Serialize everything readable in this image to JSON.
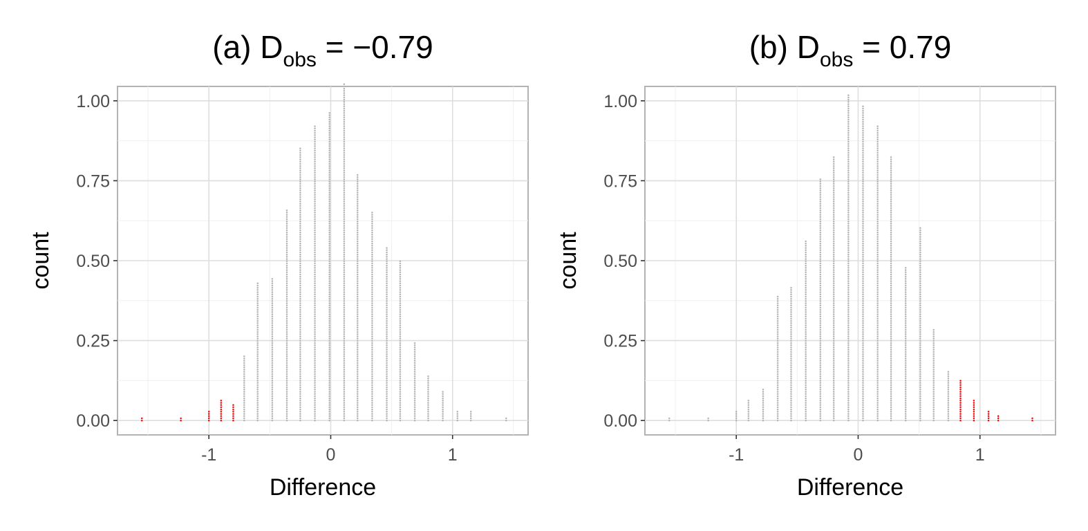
{
  "colors": {
    "extreme": "#ff0000",
    "regular": "#b3b3b3",
    "grid_major": "#dedede",
    "grid_minor": "#efefef",
    "panel_border": "#b3b3b3"
  },
  "chart_data": [
    {
      "type": "scatter",
      "style": "dotplot",
      "title_prefix": "(a) D",
      "title_subscript": "obs",
      "title_suffix": " = −0.79",
      "xlabel": "Difference",
      "ylabel": "count",
      "xlim": [
        -1.75,
        1.62
      ],
      "ylim": [
        -0.045,
        1.045
      ],
      "x_ticks": [
        -1,
        0,
        1
      ],
      "x_tick_labels": [
        "-1",
        "0",
        "1"
      ],
      "y_ticks": [
        0,
        0.25,
        0.5,
        0.75,
        1
      ],
      "y_tick_labels": [
        "0.00",
        "0.25",
        "0.50",
        "0.75",
        "1.00"
      ],
      "grid": true,
      "series": [
        {
          "color_key": "extreme",
          "x": [
            -1.55,
            -1.23,
            -1.0,
            -0.9,
            -0.8
          ],
          "y": [
            0.005,
            0.005,
            0.03,
            0.065,
            0.05
          ]
        },
        {
          "color_key": "regular",
          "x": [
            -0.71,
            -0.6,
            -0.48,
            -0.36,
            -0.25,
            -0.13,
            -0.01,
            0.11,
            0.22,
            0.34,
            0.46,
            0.57,
            0.69,
            0.8,
            0.92,
            1.04,
            1.15,
            1.44
          ],
          "y": [
            0.2,
            0.43,
            0.44,
            0.66,
            0.85,
            0.92,
            0.96,
            1.05,
            0.77,
            0.65,
            0.54,
            0.5,
            0.24,
            0.135,
            0.09,
            0.025,
            0.025,
            0.005
          ]
        }
      ]
    },
    {
      "type": "scatter",
      "style": "dotplot",
      "title_prefix": "(b) D",
      "title_subscript": "obs",
      "title_suffix": " = 0.79",
      "xlabel": "Difference",
      "ylabel": "count",
      "xlim": [
        -1.75,
        1.62
      ],
      "ylim": [
        -0.045,
        1.045
      ],
      "x_ticks": [
        -1,
        0,
        1
      ],
      "x_tick_labels": [
        "-1",
        "0",
        "1"
      ],
      "y_ticks": [
        0,
        0.25,
        0.5,
        0.75,
        1
      ],
      "y_tick_labels": [
        "0.00",
        "0.25",
        "0.50",
        "0.75",
        "1.00"
      ],
      "grid": true,
      "series": [
        {
          "color_key": "extreme",
          "x": [
            0.84,
            0.95,
            1.07,
            1.15,
            1.43
          ],
          "y": [
            0.125,
            0.065,
            0.025,
            0.015,
            0.005
          ]
        },
        {
          "color_key": "regular",
          "x": [
            -1.55,
            -1.23,
            -1.0,
            -0.9,
            -0.78,
            -0.66,
            -0.55,
            -0.43,
            -0.31,
            -0.2,
            -0.08,
            0.04,
            0.16,
            0.27,
            0.39,
            0.51,
            0.62,
            0.74
          ],
          "y": [
            0.005,
            0.005,
            0.03,
            0.065,
            0.1,
            0.39,
            0.415,
            0.56,
            0.755,
            0.825,
            1.02,
            0.985,
            0.92,
            0.825,
            0.475,
            0.6,
            0.285,
            0.155
          ]
        }
      ]
    }
  ]
}
